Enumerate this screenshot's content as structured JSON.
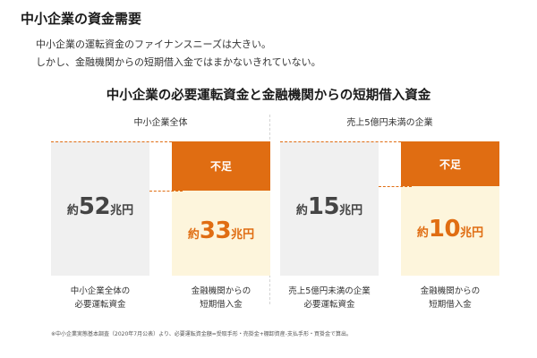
{
  "page": {
    "title": "中小企業の資金需要",
    "lead_line1": "中小企業の運転資金のファイナンスニーズは大きい。",
    "lead_line2": "しかし、金融機関からの短期借入金ではまかないきれていない。",
    "chart_title": "中小企業の必要運転資金と金融機関からの短期借入資金",
    "footnote": "※中小企業実態基本調査（2020年7月公表）より、必要運転資金額=受取手形・売掛金+棚卸資産-支払手形・買掛金で算出。"
  },
  "colors": {
    "shortfall": "#e06d12",
    "need_bar": "#f0f0f0",
    "loan_bar": "#fdf5dc"
  },
  "chart_data": {
    "type": "bar",
    "value_prefix": "約",
    "unit": "兆円",
    "shortfall_label": "不足",
    "panels": [
      {
        "header": "中小企業全体",
        "bars": [
          {
            "label_line1": "中小企業全体の",
            "label_line2": "必要運転資金",
            "value": 52
          },
          {
            "label_line1": "金融機関からの",
            "label_line2": "短期借入金",
            "value": 33
          }
        ]
      },
      {
        "header": "売上5億円未満の企業",
        "bars": [
          {
            "label_line1": "売上5億円未満の企業",
            "label_line2": "必要運転資金",
            "value": 15
          },
          {
            "label_line1": "金融機関からの",
            "label_line2": "短期借入金",
            "value": 10
          }
        ]
      }
    ]
  }
}
